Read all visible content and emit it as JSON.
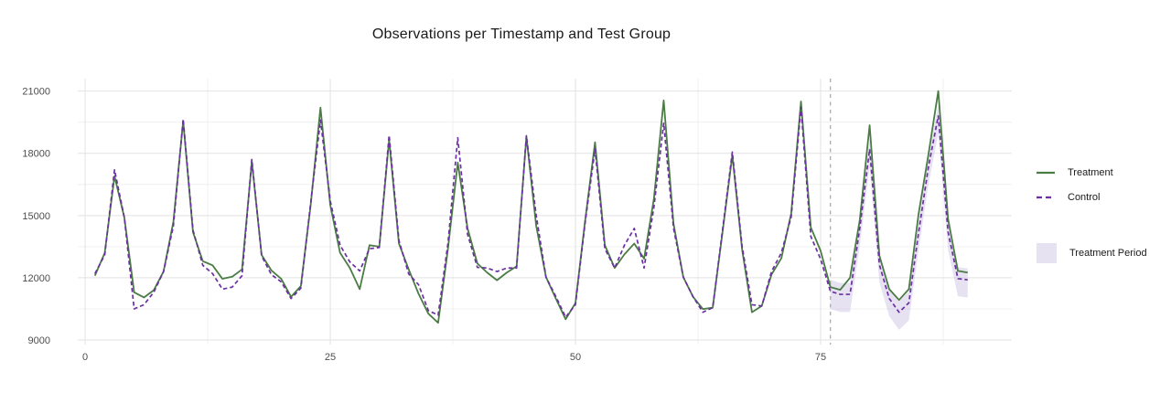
{
  "title": "Observations per Timestamp and Test Group",
  "chart_data": {
    "type": "line",
    "title": "Observations per Timestamp and Test Group",
    "xlabel": "",
    "ylabel": "",
    "x_ticks": [
      0,
      25,
      50,
      75
    ],
    "x_minor": [
      12.5,
      37.5,
      62.5,
      87.5
    ],
    "y_ticks": [
      9000,
      12000,
      15000,
      18000,
      21000
    ],
    "y_minor": [
      10500,
      13500,
      16500,
      19500
    ],
    "xlim": [
      -0.75,
      94.5
    ],
    "ylim": [
      8780,
      21600
    ],
    "grid": true,
    "legend_position": "right",
    "x": [
      1,
      2,
      3,
      4,
      5,
      6,
      7,
      8,
      9,
      10,
      11,
      12,
      13,
      14,
      15,
      16,
      17,
      18,
      19,
      20,
      21,
      22,
      23,
      24,
      25,
      26,
      27,
      28,
      29,
      30,
      31,
      32,
      33,
      34,
      35,
      36,
      37,
      38,
      39,
      40,
      41,
      42,
      43,
      44,
      45,
      46,
      47,
      48,
      49,
      50,
      51,
      52,
      53,
      54,
      55,
      56,
      57,
      58,
      59,
      60,
      61,
      62,
      63,
      64,
      65,
      66,
      67,
      68,
      69,
      70,
      71,
      72,
      73,
      74,
      75,
      76,
      77,
      78,
      79,
      80,
      81,
      82,
      83,
      84,
      85,
      86,
      87,
      88,
      89,
      90
    ],
    "series": [
      {
        "name": "Treatment",
        "style": "solid",
        "color": "#4a7c44",
        "values": [
          12100,
          13200,
          16900,
          14900,
          11300,
          11050,
          11400,
          12300,
          14700,
          19550,
          14200,
          12800,
          12600,
          11950,
          12050,
          12400,
          17600,
          13100,
          12350,
          11950,
          11080,
          11600,
          15500,
          20200,
          15500,
          13200,
          12470,
          11450,
          13570,
          13500,
          18650,
          13650,
          12400,
          11230,
          10270,
          9830,
          13400,
          17550,
          14380,
          12690,
          12250,
          11880,
          12250,
          12550,
          18800,
          14500,
          12030,
          11000,
          10000,
          10780,
          14800,
          18530,
          13570,
          12470,
          13130,
          13650,
          12920,
          15800,
          20550,
          14610,
          12030,
          11080,
          10490,
          10560,
          14200,
          17910,
          13350,
          10340,
          10640,
          12160,
          12940,
          15100,
          20500,
          14430,
          13300,
          11550,
          11420,
          12000,
          14800,
          19350,
          13060,
          11450,
          10930,
          11450,
          15100,
          17950,
          21000,
          14830,
          12330,
          12250
        ]
      },
      {
        "name": "Control",
        "style": "dashed",
        "color": "#6b2fa3",
        "values": [
          12200,
          13100,
          17200,
          14900,
          10500,
          10700,
          11300,
          12300,
          14500,
          19650,
          14300,
          12600,
          12200,
          11450,
          11550,
          12100,
          17700,
          13050,
          12150,
          11800,
          11000,
          11500,
          15600,
          19600,
          15700,
          13570,
          12760,
          12330,
          13400,
          13460,
          18870,
          13800,
          12180,
          11670,
          10420,
          10200,
          13650,
          18750,
          14100,
          12500,
          12470,
          12300,
          12470,
          12470,
          18850,
          15000,
          12030,
          11100,
          10100,
          10700,
          14700,
          18200,
          13400,
          12470,
          13570,
          14380,
          12470,
          15400,
          19450,
          14400,
          12030,
          11080,
          10340,
          10560,
          14300,
          18060,
          13500,
          10700,
          10640,
          12300,
          13200,
          14930,
          20220,
          14000,
          12900,
          11350,
          11200,
          11200,
          14400,
          18200,
          12620,
          11000,
          10340,
          10790,
          14200,
          17350,
          19800,
          14200,
          11960,
          11900
        ]
      }
    ],
    "treatment_period": {
      "label": "Treatment Period",
      "start_x": 76,
      "end_x": 90,
      "band_follows": "Control",
      "upper_offset": 550,
      "lower_offset": -850,
      "color": "#cdc6e3",
      "opacity": 0.5
    },
    "vline": {
      "x": 76,
      "style": "dashed",
      "color": "#a6a6a6"
    },
    "colors": {
      "grid_major": "#e2e2e2",
      "grid_minor": "#f0f0f0",
      "axis_text": "#4d4d4d",
      "title_text": "#1a1a1a",
      "background": "#ffffff"
    }
  }
}
